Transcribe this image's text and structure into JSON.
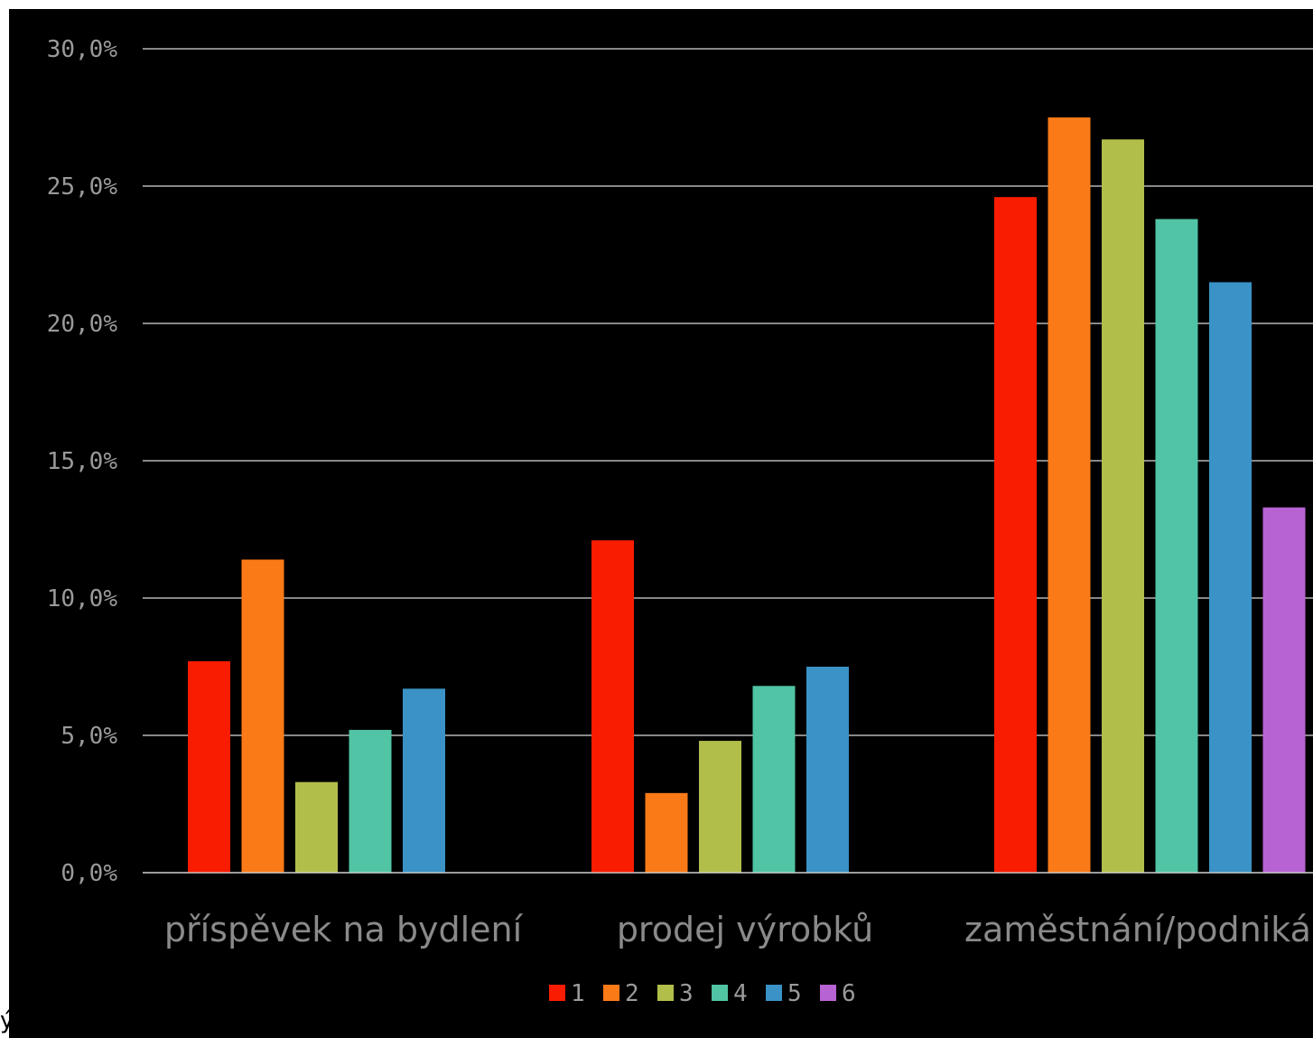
{
  "chart_data": {
    "type": "bar",
    "categories": [
      "příspěvek na bydlení",
      "prodej výrobků",
      "zaměstnání/podnikán"
    ],
    "series": [
      {
        "name": "1",
        "color": "#f91c00",
        "values": [
          7.7,
          12.1,
          24.6
        ]
      },
      {
        "name": "2",
        "color": "#fb7a18",
        "values": [
          11.4,
          2.9,
          27.5
        ]
      },
      {
        "name": "3",
        "color": "#b2be4a",
        "values": [
          3.3,
          4.8,
          26.7
        ]
      },
      {
        "name": "4",
        "color": "#50c4a4",
        "values": [
          5.2,
          6.8,
          23.8
        ]
      },
      {
        "name": "5",
        "color": "#3a92c6",
        "values": [
          6.7,
          7.5,
          21.5
        ]
      },
      {
        "name": "6",
        "color": "#b763d3",
        "values": [
          null,
          null,
          13.3
        ]
      }
    ],
    "ylim": [
      0,
      30
    ],
    "yticks": [
      "0,0%",
      "5,0%",
      "10,0%",
      "15,0%",
      "20,0%",
      "25,0%",
      "30,0%"
    ],
    "grid": true,
    "legend": "bottom-center",
    "background": "#000000"
  },
  "edge_text": "ý"
}
